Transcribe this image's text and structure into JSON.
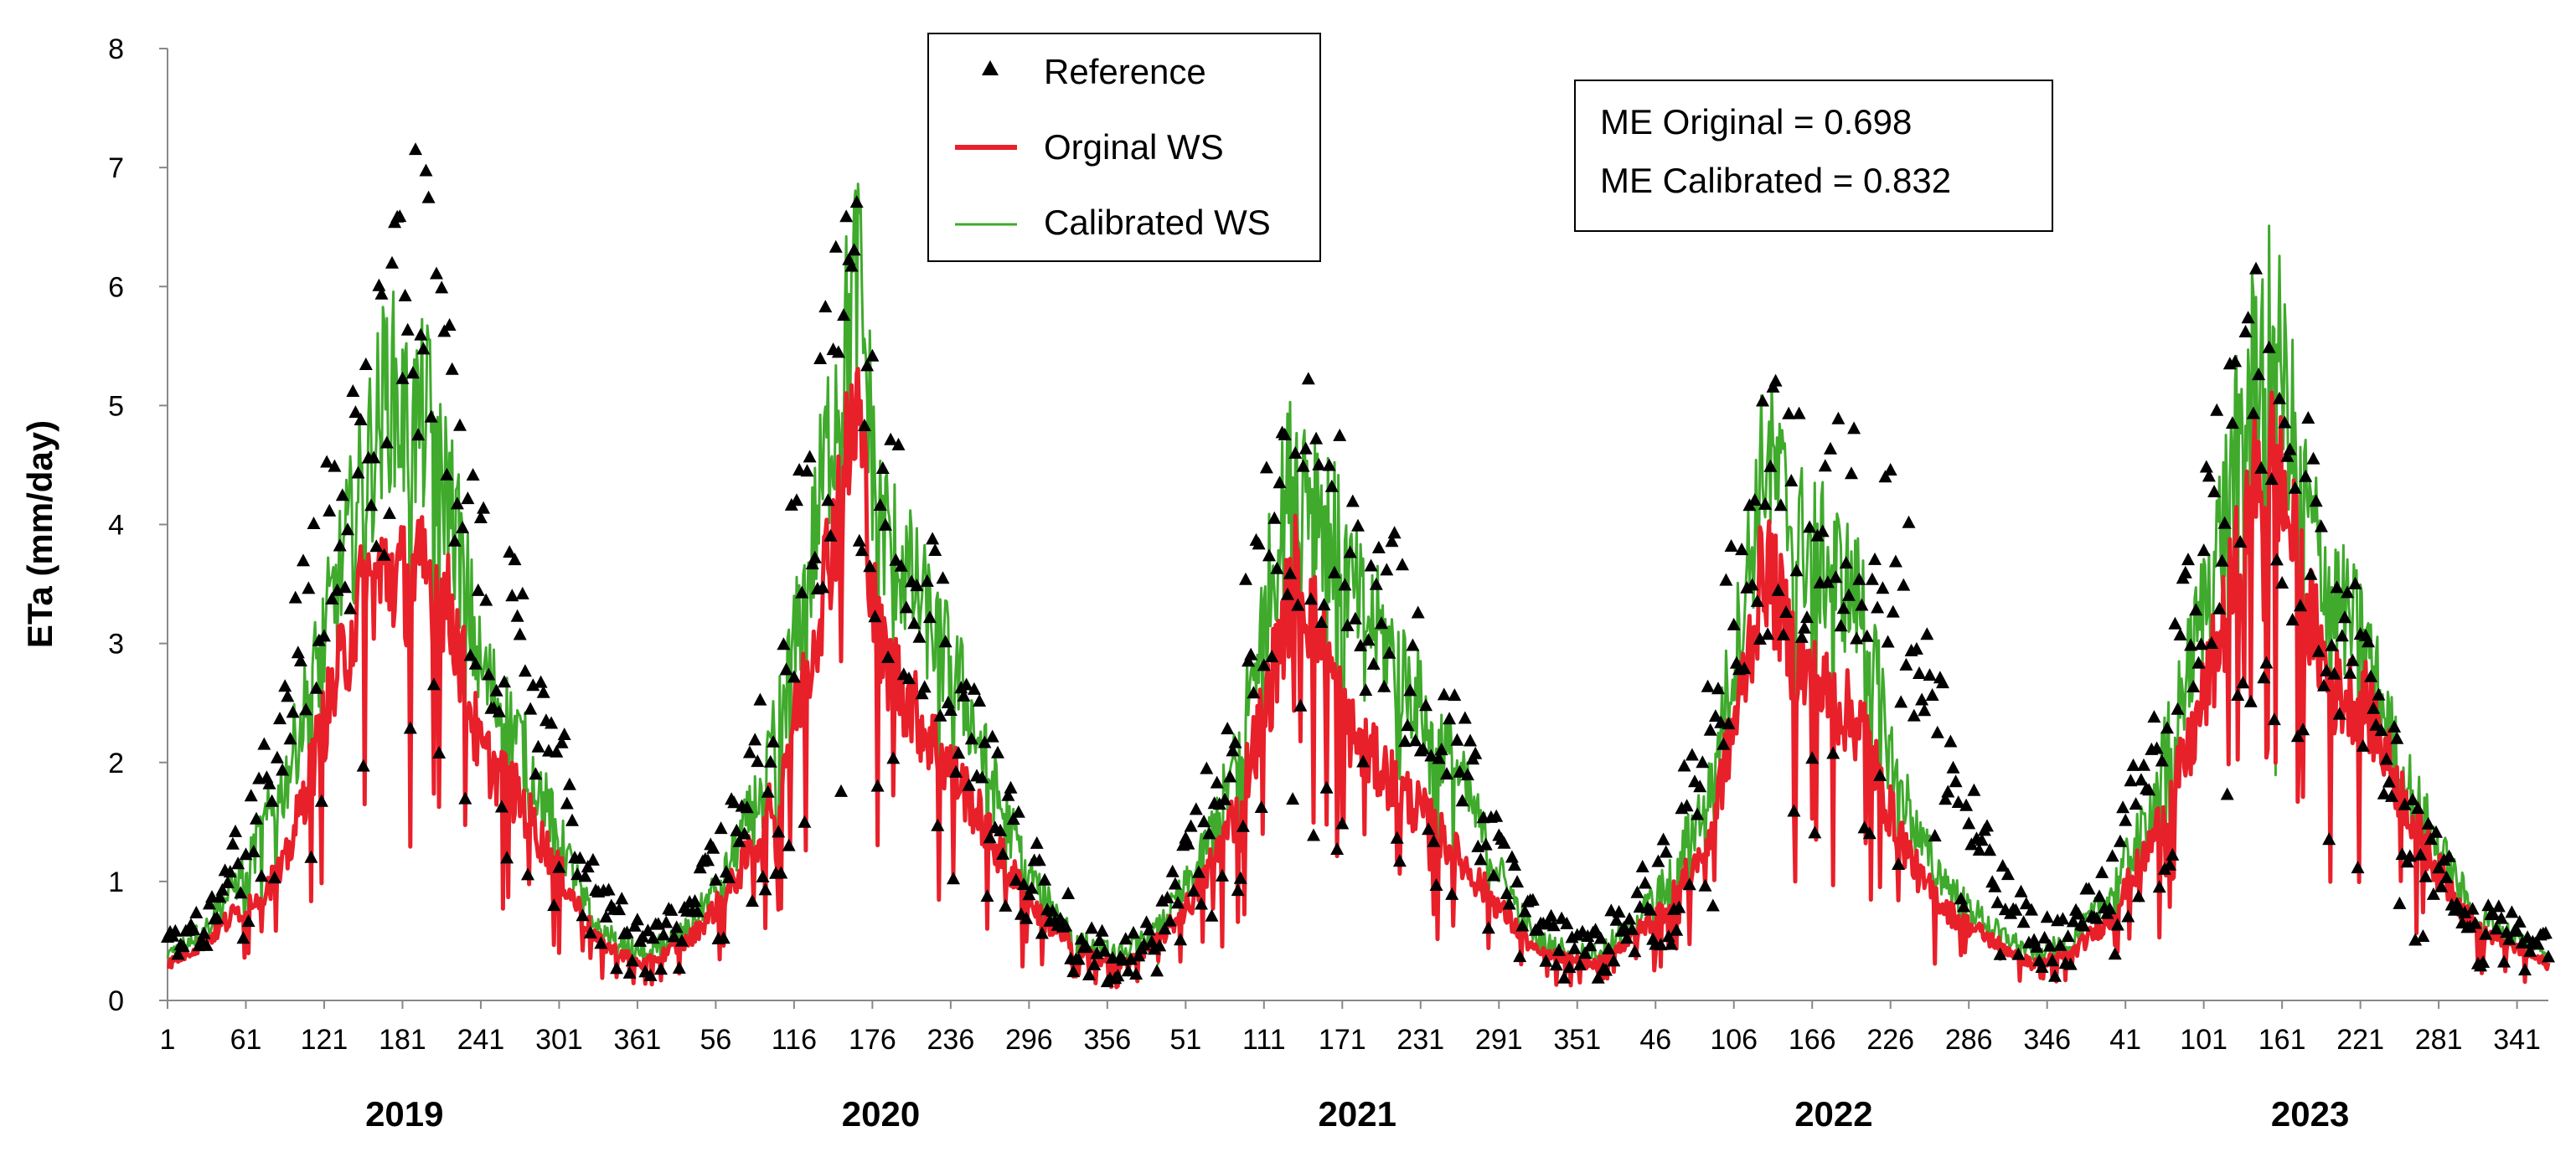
{
  "chart_data": {
    "type": "line",
    "title": "",
    "ylabel": "ETa (mm/day)",
    "xlabel": "",
    "ylim": [
      0,
      8
    ],
    "y_ticks": [
      "0",
      "1",
      "2",
      "3",
      "4",
      "5",
      "6",
      "7",
      "8"
    ],
    "days_per_year": 365,
    "years": [
      {
        "label": "2019",
        "ticks": [
          "1",
          "61",
          "121",
          "181",
          "241",
          "301",
          "361"
        ]
      },
      {
        "label": "2020",
        "ticks": [
          "56",
          "116",
          "176",
          "236",
          "296",
          "356"
        ]
      },
      {
        "label": "2021",
        "ticks": [
          "51",
          "111",
          "171",
          "231",
          "291",
          "351"
        ]
      },
      {
        "label": "2022",
        "ticks": [
          "46",
          "106",
          "166",
          "226",
          "286",
          "346"
        ]
      },
      {
        "label": "2023",
        "ticks": [
          "41",
          "101",
          "161",
          "221",
          "281",
          "341"
        ]
      }
    ],
    "legend": {
      "position": "top-center",
      "entries": [
        "Reference",
        "Orginal WS",
        "Calibrated WS"
      ]
    },
    "annotation": {
      "lines": [
        "ME Original = 0.698",
        "ME Calibrated = 0.832"
      ]
    },
    "colors": {
      "reference": "#000000",
      "original": "#e8202a",
      "calibrated": "#3faa2c"
    },
    "series": [
      {
        "name": "Reference",
        "kind": "scatter",
        "approx_daily_envelope": [
          [
            1,
            0.5
          ],
          [
            30,
            0.6
          ],
          [
            60,
            1.3
          ],
          [
            90,
            2.7
          ],
          [
            120,
            3.6
          ],
          [
            150,
            4.3
          ],
          [
            170,
            5.0
          ],
          [
            185,
            5.8
          ],
          [
            200,
            5.6
          ],
          [
            220,
            4.4
          ],
          [
            240,
            3.3
          ],
          [
            270,
            2.9
          ],
          [
            300,
            2.0
          ],
          [
            330,
            0.9
          ],
          [
            365,
            0.5
          ],
          [
            400,
            0.7
          ],
          [
            430,
            1.3
          ],
          [
            460,
            2.2
          ],
          [
            490,
            3.9
          ],
          [
            510,
            4.9
          ],
          [
            525,
            5.6
          ],
          [
            545,
            4.0
          ],
          [
            580,
            3.5
          ],
          [
            610,
            2.4
          ],
          [
            640,
            1.6
          ],
          [
            670,
            1.0
          ],
          [
            700,
            0.6
          ],
          [
            730,
            0.4
          ],
          [
            760,
            0.6
          ],
          [
            790,
            1.3
          ],
          [
            820,
            2.4
          ],
          [
            845,
            3.9
          ],
          [
            870,
            4.5
          ],
          [
            885,
            4.0
          ],
          [
            910,
            3.7
          ],
          [
            935,
            3.3
          ],
          [
            960,
            2.7
          ],
          [
            990,
            2.0
          ],
          [
            1020,
            1.2
          ],
          [
            1050,
            0.6
          ],
          [
            1095,
            0.5
          ],
          [
            1120,
            0.7
          ],
          [
            1150,
            1.2
          ],
          [
            1180,
            2.1
          ],
          [
            1205,
            3.3
          ],
          [
            1225,
            4.2
          ],
          [
            1250,
            3.9
          ],
          [
            1280,
            3.9
          ],
          [
            1300,
            4.0
          ],
          [
            1320,
            3.7
          ],
          [
            1345,
            2.9
          ],
          [
            1370,
            1.9
          ],
          [
            1400,
            1.0
          ],
          [
            1430,
            0.6
          ],
          [
            1460,
            0.6
          ],
          [
            1490,
            1.0
          ],
          [
            1520,
            2.0
          ],
          [
            1550,
            3.1
          ],
          [
            1575,
            4.3
          ],
          [
            1600,
            5.5
          ],
          [
            1615,
            4.6
          ],
          [
            1640,
            3.9
          ],
          [
            1660,
            3.4
          ],
          [
            1685,
            2.6
          ],
          [
            1710,
            1.7
          ],
          [
            1740,
            1.1
          ],
          [
            1770,
            0.7
          ],
          [
            1825,
            0.5
          ]
        ]
      },
      {
        "name": "Orginal WS",
        "kind": "line",
        "approx_daily_envelope": [
          [
            1,
            0.3
          ],
          [
            30,
            0.5
          ],
          [
            60,
            0.8
          ],
          [
            90,
            1.1
          ],
          [
            120,
            2.3
          ],
          [
            150,
            3.4
          ],
          [
            170,
            3.6
          ],
          [
            185,
            3.5
          ],
          [
            200,
            3.6
          ],
          [
            220,
            3.2
          ],
          [
            240,
            2.1
          ],
          [
            270,
            1.7
          ],
          [
            300,
            1.1
          ],
          [
            330,
            0.5
          ],
          [
            365,
            0.3
          ],
          [
            400,
            0.5
          ],
          [
            430,
            0.9
          ],
          [
            460,
            1.5
          ],
          [
            490,
            2.7
          ],
          [
            510,
            3.9
          ],
          [
            530,
            5.0
          ],
          [
            545,
            3.0
          ],
          [
            580,
            2.3
          ],
          [
            610,
            1.8
          ],
          [
            640,
            1.2
          ],
          [
            670,
            0.7
          ],
          [
            700,
            0.4
          ],
          [
            730,
            0.3
          ],
          [
            760,
            0.5
          ],
          [
            790,
            0.9
          ],
          [
            820,
            1.6
          ],
          [
            845,
            2.6
          ],
          [
            865,
            3.6
          ],
          [
            885,
            3.0
          ],
          [
            910,
            2.2
          ],
          [
            935,
            1.9
          ],
          [
            960,
            1.6
          ],
          [
            990,
            1.2
          ],
          [
            1020,
            0.8
          ],
          [
            1050,
            0.4
          ],
          [
            1095,
            0.3
          ],
          [
            1120,
            0.5
          ],
          [
            1150,
            0.8
          ],
          [
            1180,
            1.3
          ],
          [
            1205,
            2.5
          ],
          [
            1225,
            3.7
          ],
          [
            1250,
            2.8
          ],
          [
            1280,
            2.5
          ],
          [
            1300,
            2.3
          ],
          [
            1320,
            1.6
          ],
          [
            1345,
            1.0
          ],
          [
            1370,
            0.7
          ],
          [
            1400,
            0.5
          ],
          [
            1430,
            0.3
          ],
          [
            1460,
            0.4
          ],
          [
            1490,
            0.7
          ],
          [
            1520,
            1.3
          ],
          [
            1550,
            2.1
          ],
          [
            1575,
            3.1
          ],
          [
            1600,
            4.3
          ],
          [
            1615,
            4.6
          ],
          [
            1640,
            3.3
          ],
          [
            1660,
            2.6
          ],
          [
            1685,
            2.5
          ],
          [
            1710,
            1.8
          ],
          [
            1740,
            1.1
          ],
          [
            1770,
            0.6
          ],
          [
            1825,
            0.3
          ]
        ]
      },
      {
        "name": "Calibrated WS",
        "kind": "line",
        "approx_daily_envelope": [
          [
            1,
            0.4
          ],
          [
            30,
            0.6
          ],
          [
            60,
            1.1
          ],
          [
            90,
            1.8
          ],
          [
            120,
            3.0
          ],
          [
            150,
            4.3
          ],
          [
            170,
            5.2
          ],
          [
            185,
            4.8
          ],
          [
            200,
            4.9
          ],
          [
            220,
            4.1
          ],
          [
            240,
            2.8
          ],
          [
            270,
            2.2
          ],
          [
            300,
            1.4
          ],
          [
            330,
            0.6
          ],
          [
            365,
            0.4
          ],
          [
            400,
            0.6
          ],
          [
            430,
            1.1
          ],
          [
            460,
            1.9
          ],
          [
            490,
            3.4
          ],
          [
            510,
            4.9
          ],
          [
            530,
            6.1
          ],
          [
            545,
            4.1
          ],
          [
            580,
            3.3
          ],
          [
            610,
            2.6
          ],
          [
            640,
            1.6
          ],
          [
            670,
            0.9
          ],
          [
            700,
            0.5
          ],
          [
            730,
            0.4
          ],
          [
            760,
            0.6
          ],
          [
            790,
            1.1
          ],
          [
            820,
            2.0
          ],
          [
            845,
            3.5
          ],
          [
            865,
            4.6
          ],
          [
            885,
            4.2
          ],
          [
            910,
            3.4
          ],
          [
            935,
            3.0
          ],
          [
            960,
            2.5
          ],
          [
            990,
            1.9
          ],
          [
            1020,
            1.1
          ],
          [
            1050,
            0.5
          ],
          [
            1095,
            0.4
          ],
          [
            1120,
            0.6
          ],
          [
            1150,
            1.0
          ],
          [
            1180,
            1.7
          ],
          [
            1205,
            3.1
          ],
          [
            1225,
            4.6
          ],
          [
            1250,
            3.9
          ],
          [
            1280,
            3.6
          ],
          [
            1300,
            3.3
          ],
          [
            1320,
            2.1
          ],
          [
            1345,
            1.3
          ],
          [
            1370,
            0.9
          ],
          [
            1400,
            0.6
          ],
          [
            1430,
            0.4
          ],
          [
            1460,
            0.5
          ],
          [
            1490,
            0.9
          ],
          [
            1520,
            1.6
          ],
          [
            1550,
            2.8
          ],
          [
            1575,
            4.0
          ],
          [
            1600,
            5.4
          ],
          [
            1615,
            5.6
          ],
          [
            1640,
            4.1
          ],
          [
            1660,
            3.4
          ],
          [
            1685,
            3.0
          ],
          [
            1710,
            2.0
          ],
          [
            1740,
            1.3
          ],
          [
            1770,
            0.7
          ],
          [
            1825,
            0.4
          ]
        ]
      }
    ]
  }
}
